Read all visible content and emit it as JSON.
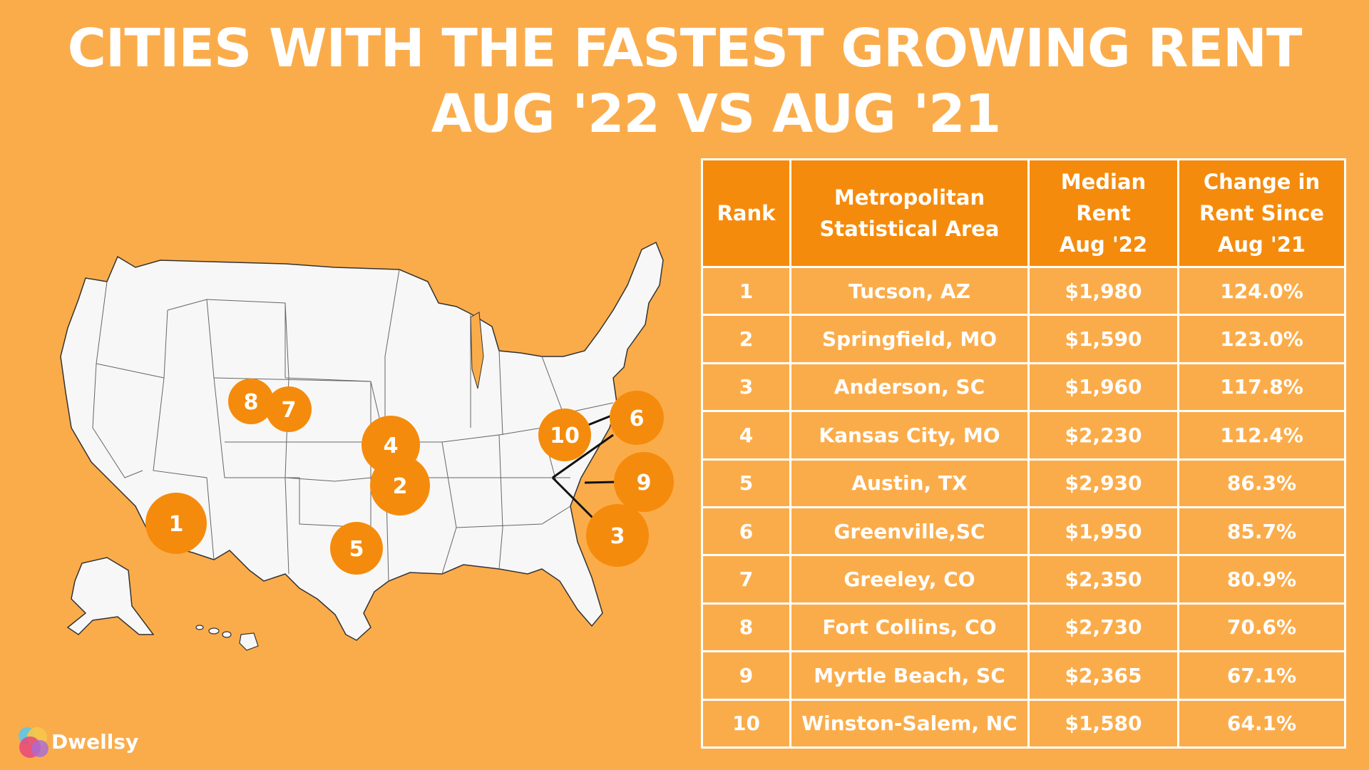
{
  "title": {
    "line1": "CITIES WITH THE FASTEST GROWING RENT",
    "line2": "AUG '22 VS AUG '21"
  },
  "colors": {
    "background": "#FBAC4A",
    "header_fill": "#F58B0C",
    "marker": "#F58B0C",
    "map_fill": "#F7F7F7",
    "text": "#FFFFFF"
  },
  "map": {
    "markers": [
      "1",
      "2",
      "3",
      "4",
      "5",
      "6",
      "7",
      "8",
      "9",
      "10"
    ]
  },
  "table": {
    "headers": {
      "rank": "Rank",
      "msa_1": "Metropolitan",
      "msa_2": "Statistical Area",
      "rent_1": "Median",
      "rent_2": "Rent",
      "rent_3": "Aug '22",
      "change_1": "Change in",
      "change_2": "Rent Since",
      "change_3": "Aug '21"
    },
    "rows": [
      {
        "rank": "1",
        "msa": "Tucson, AZ",
        "rent": "$1,980",
        "change": "124.0%"
      },
      {
        "rank": "2",
        "msa": "Springfield, MO",
        "rent": "$1,590",
        "change": "123.0%"
      },
      {
        "rank": "3",
        "msa": "Anderson, SC",
        "rent": "$1,960",
        "change": "117.8%"
      },
      {
        "rank": "4",
        "msa": "Kansas City, MO",
        "rent": "$2,230",
        "change": "112.4%"
      },
      {
        "rank": "5",
        "msa": "Austin, TX",
        "rent": "$2,930",
        "change": "86.3%"
      },
      {
        "rank": "6",
        "msa": "Greenville,SC",
        "rent": "$1,950",
        "change": "85.7%"
      },
      {
        "rank": "7",
        "msa": "Greeley, CO",
        "rent": "$2,350",
        "change": "80.9%"
      },
      {
        "rank": "8",
        "msa": "Fort Collins, CO",
        "rent": "$2,730",
        "change": "70.6%"
      },
      {
        "rank": "9",
        "msa": "Myrtle Beach, SC",
        "rent": "$2,365",
        "change": "67.1%"
      },
      {
        "rank": "10",
        "msa": "Winston-Salem, NC",
        "rent": "$1,580",
        "change": "64.1%"
      }
    ]
  },
  "brand": {
    "name": "Dwellsy",
    "icon": "overlapping-circles-logo-icon"
  }
}
